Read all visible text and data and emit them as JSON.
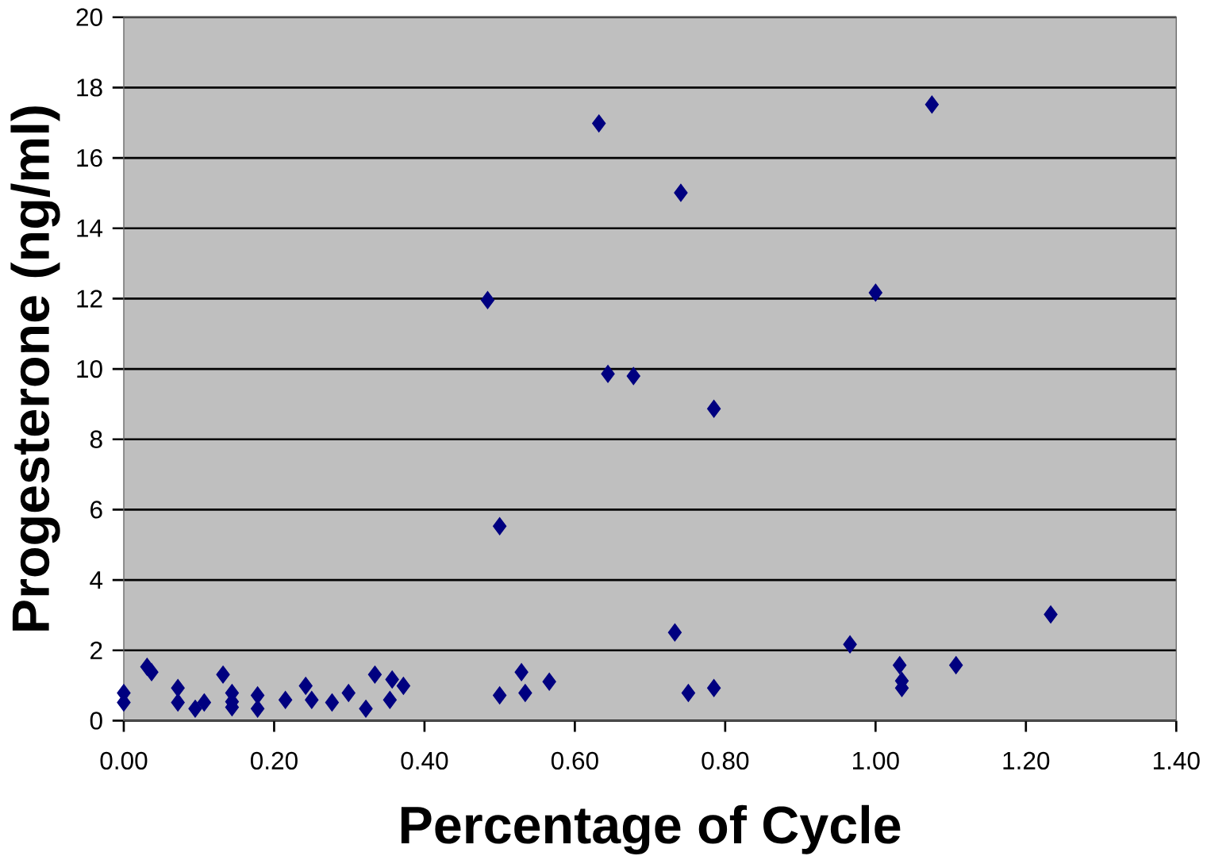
{
  "chart_data": {
    "type": "scatter",
    "xlabel": "Percentage of Cycle",
    "ylabel": "Progesterone (ng/ml)",
    "xlim": [
      0,
      1.4
    ],
    "ylim": [
      0,
      20
    ],
    "xticks": [
      {
        "value": 0,
        "label": "0.00"
      },
      {
        "value": 0.2,
        "label": "0.20"
      },
      {
        "value": 0.4,
        "label": "0.40"
      },
      {
        "value": 0.6,
        "label": "0.60"
      },
      {
        "value": 0.8,
        "label": "0.80"
      },
      {
        "value": 1.0,
        "label": "1.00"
      },
      {
        "value": 1.2,
        "label": "1.20"
      },
      {
        "value": 1.4,
        "label": "1.40"
      }
    ],
    "yticks": [
      0,
      2,
      4,
      6,
      8,
      10,
      12,
      14,
      16,
      18,
      20
    ],
    "grid": "y",
    "marker": "diamond",
    "series": [
      {
        "color": "#000080",
        "x": [
          0.0,
          0.0,
          0.031,
          0.037,
          0.072,
          0.072,
          0.095,
          0.107,
          0.132,
          0.144,
          0.144,
          0.144,
          0.178,
          0.178,
          0.215,
          0.242,
          0.25,
          0.277,
          0.299,
          0.322,
          0.334,
          0.354,
          0.357,
          0.372,
          0.484,
          0.5,
          0.5,
          0.529,
          0.534,
          0.566,
          0.632,
          0.644,
          0.678,
          0.733,
          0.741,
          0.751,
          0.785,
          0.785,
          0.966,
          1.0,
          1.032,
          1.035,
          1.035,
          1.075,
          1.107,
          1.233
        ],
        "values": [
          0.79,
          0.52,
          1.53,
          1.38,
          0.93,
          0.52,
          0.34,
          0.52,
          1.31,
          0.79,
          0.54,
          0.38,
          0.72,
          0.34,
          0.59,
          0.99,
          0.59,
          0.52,
          0.79,
          0.34,
          1.31,
          0.59,
          1.17,
          0.99,
          11.96,
          5.53,
          0.72,
          1.38,
          0.79,
          1.11,
          16.98,
          9.86,
          9.8,
          2.51,
          15.01,
          0.79,
          8.87,
          0.93,
          2.17,
          12.17,
          1.58,
          1.13,
          0.93,
          17.52,
          1.58,
          3.02
        ]
      }
    ]
  }
}
